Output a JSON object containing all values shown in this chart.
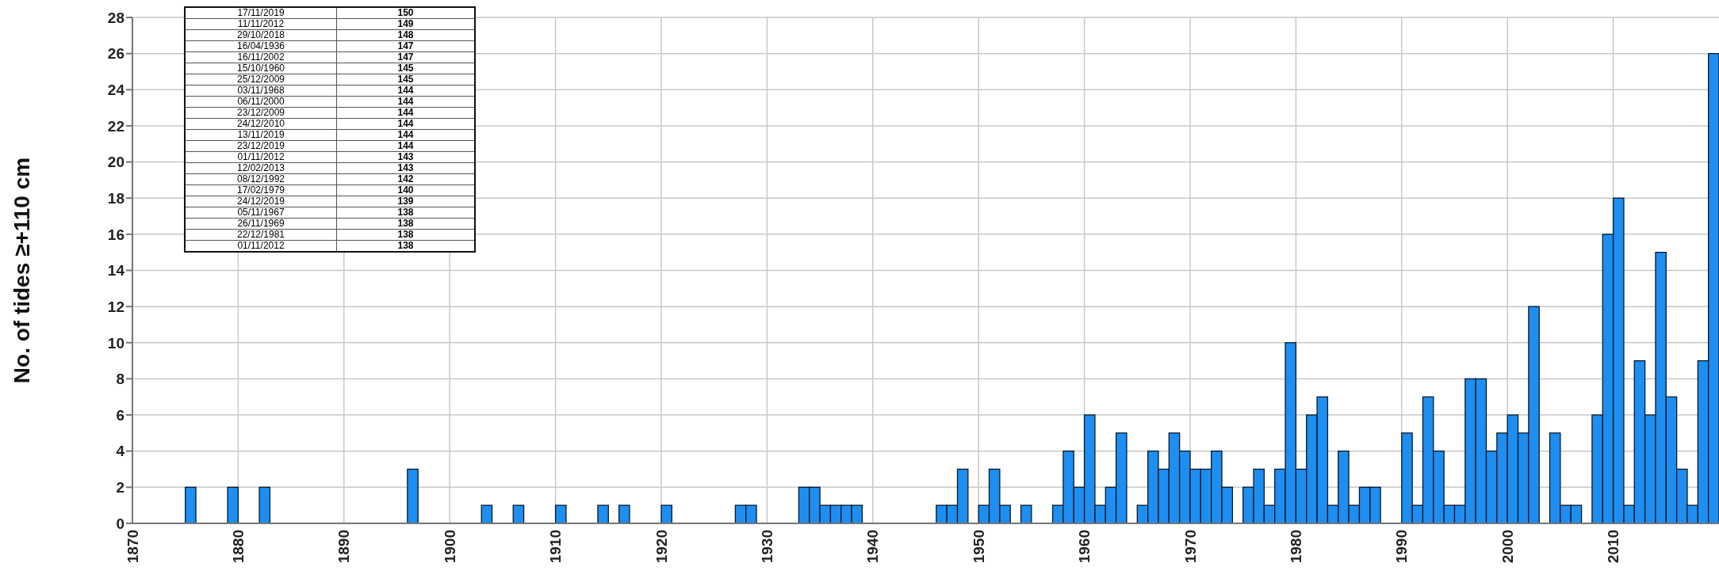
{
  "chart_data": {
    "type": "histogram",
    "ylabel": "No. of tides ≥+110 cm",
    "bins": [
      1870,
      1871,
      1872,
      1873,
      1874,
      1875,
      1876,
      1877,
      1878,
      1879,
      1880,
      1881,
      1882,
      1883,
      1884,
      1885,
      1886,
      1887,
      1888,
      1889,
      1890,
      1891,
      1892,
      1893,
      1894,
      1895,
      1896,
      1897,
      1898,
      1899,
      1900,
      1901,
      1902,
      1903,
      1904,
      1905,
      1906,
      1907,
      1908,
      1909,
      1910,
      1911,
      1912,
      1913,
      1914,
      1915,
      1916,
      1917,
      1918,
      1919,
      1920,
      1921,
      1922,
      1923,
      1924,
      1925,
      1926,
      1927,
      1928,
      1929,
      1930,
      1931,
      1932,
      1933,
      1934,
      1935,
      1936,
      1937,
      1938,
      1939,
      1940,
      1941,
      1942,
      1943,
      1944,
      1945,
      1946,
      1947,
      1948,
      1949,
      1950,
      1951,
      1952,
      1953,
      1954,
      1955,
      1956,
      1957,
      1958,
      1959,
      1960,
      1961,
      1962,
      1963,
      1964,
      1965,
      1966,
      1967,
      1968,
      1969,
      1970,
      1971,
      1972,
      1973,
      1974,
      1975,
      1976,
      1977,
      1978,
      1979,
      1980,
      1981,
      1982,
      1983,
      1984,
      1985,
      1986,
      1987,
      1988,
      1989,
      1990,
      1991,
      1992,
      1993,
      1994,
      1995,
      1996,
      1997,
      1998,
      1999,
      2000,
      2001,
      2002,
      2003,
      2004,
      2005,
      2006,
      2007,
      2008,
      2009,
      2010,
      2011,
      2012,
      2013,
      2014,
      2015,
      2016,
      2017,
      2018,
      2019,
      2020
    ],
    "values": [
      0,
      0,
      0,
      0,
      0,
      2,
      0,
      0,
      0,
      2,
      0,
      0,
      2,
      0,
      0,
      0,
      0,
      0,
      0,
      0,
      0,
      0,
      0,
      0,
      0,
      0,
      3,
      0,
      0,
      0,
      0,
      0,
      0,
      1,
      0,
      0,
      1,
      0,
      0,
      0,
      1,
      0,
      0,
      0,
      1,
      0,
      1,
      0,
      0,
      0,
      1,
      0,
      0,
      0,
      0,
      0,
      0,
      1,
      1,
      0,
      0,
      0,
      0,
      2,
      2,
      1,
      1,
      1,
      1,
      0,
      0,
      0,
      0,
      0,
      0,
      0,
      1,
      1,
      3,
      0,
      1,
      3,
      1,
      0,
      1,
      0,
      0,
      1,
      4,
      2,
      6,
      1,
      2,
      5,
      0,
      1,
      4,
      3,
      5,
      4,
      3,
      3,
      4,
      2,
      0,
      2,
      3,
      1,
      3,
      10,
      3,
      6,
      7,
      1,
      4,
      1,
      2,
      2,
      0,
      0,
      5,
      1,
      7,
      4,
      1,
      1,
      8,
      8,
      4,
      5,
      6,
      5,
      12,
      0,
      5,
      1,
      1,
      0,
      6,
      16,
      18,
      1,
      9,
      6,
      15,
      7,
      3,
      1,
      9,
      26
    ],
    "color": "#1e8ef0",
    "xlim": [
      1870,
      2020
    ],
    "xticks": [
      1870,
      1880,
      1890,
      1900,
      1910,
      1920,
      1930,
      1940,
      1950,
      1960,
      1970,
      1980,
      1990,
      2000,
      2010
    ],
    "ylim": [
      0,
      28
    ],
    "yticks": [
      0,
      2,
      4,
      6,
      8,
      10,
      12,
      14,
      16,
      18,
      20,
      22,
      24,
      26,
      28
    ],
    "grid": true,
    "annotations": [
      "17/11/2019",
      "150",
      "11/11/2012",
      "149",
      "29/10/2018",
      "148",
      "16/04/1936",
      "147",
      "16/11/2002",
      "147",
      "15/10/1960",
      "145",
      "25/12/2009",
      "145",
      "03/11/1968",
      "144",
      "06/11/2000",
      "144",
      "23/12/2009",
      "144",
      "24/12/2010",
      "144",
      "13/11/2019",
      "144",
      "23/12/2019",
      "144",
      "01/11/2012",
      "143",
      "12/02/2013",
      "143",
      "08/12/1992",
      "142",
      "17/02/1979",
      "140",
      "24/12/2019",
      "139",
      "05/11/1967",
      "138",
      "26/11/1969",
      "138",
      "22/12/1981",
      "138",
      "01/11/2012",
      "138"
    ]
  }
}
